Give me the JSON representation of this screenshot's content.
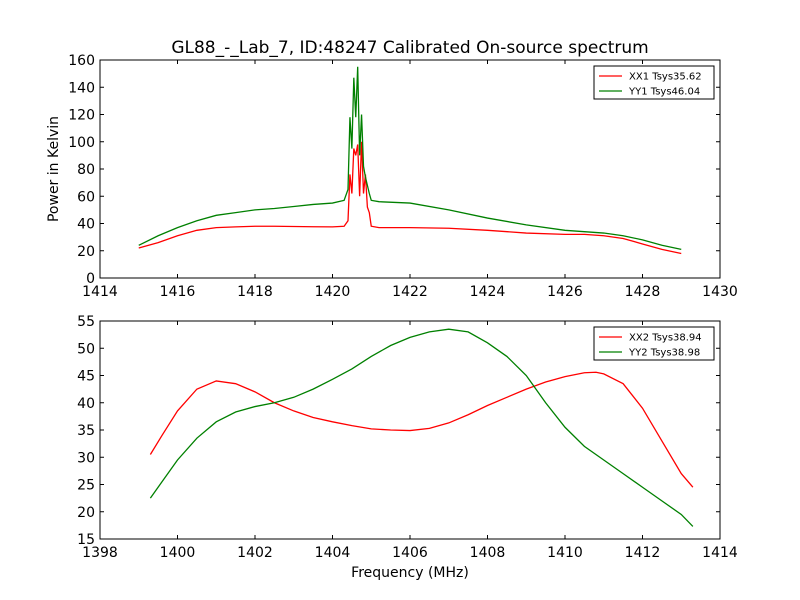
{
  "figure": {
    "title": "GL88_-_Lab_7, ID:48247 Calibrated On-source spectrum"
  },
  "chart_data": [
    {
      "type": "line",
      "title": "GL88_-_Lab_7, ID:48247 Calibrated On-source spectrum",
      "xlabel": "",
      "ylabel": "Power in Kelvin",
      "xlim": [
        1414,
        1430
      ],
      "ylim": [
        0,
        160
      ],
      "xticks": [
        1414,
        1416,
        1418,
        1420,
        1422,
        1424,
        1426,
        1428,
        1430
      ],
      "yticks": [
        0,
        20,
        40,
        60,
        80,
        100,
        120,
        140,
        160
      ],
      "grid": false,
      "legend_position": "top-right",
      "series": [
        {
          "name": "XX1 Tsys35.62",
          "color": "#ff0000",
          "x": [
            1415.0,
            1415.5,
            1416.0,
            1416.5,
            1417.0,
            1417.5,
            1418.0,
            1418.5,
            1419.0,
            1419.5,
            1420.0,
            1420.3,
            1420.4,
            1420.45,
            1420.5,
            1420.55,
            1420.6,
            1420.65,
            1420.7,
            1420.75,
            1420.8,
            1420.85,
            1420.9,
            1420.95,
            1421.0,
            1421.2,
            1422.0,
            1423.0,
            1424.0,
            1425.0,
            1426.0,
            1426.5,
            1427.0,
            1427.5,
            1428.0,
            1428.5,
            1429.0
          ],
          "y": [
            22,
            26,
            31,
            35,
            37,
            37.5,
            38,
            38,
            37.8,
            37.6,
            37.5,
            38,
            42,
            76,
            62,
            95,
            90,
            98,
            60,
            100,
            62,
            76,
            52,
            48,
            38,
            37,
            37,
            36.5,
            35,
            33,
            32,
            32,
            31,
            29,
            25,
            21,
            18
          ]
        },
        {
          "name": "YY1 Tsys46.04",
          "color": "#008000",
          "x": [
            1415.0,
            1415.5,
            1416.0,
            1416.5,
            1417.0,
            1417.5,
            1418.0,
            1418.5,
            1419.0,
            1419.5,
            1420.0,
            1420.3,
            1420.4,
            1420.45,
            1420.5,
            1420.55,
            1420.6,
            1420.65,
            1420.7,
            1420.75,
            1420.8,
            1420.85,
            1420.9,
            1420.95,
            1421.0,
            1421.2,
            1422.0,
            1423.0,
            1424.0,
            1425.0,
            1426.0,
            1426.5,
            1427.0,
            1427.5,
            1428.0,
            1428.5,
            1429.0
          ],
          "y": [
            24,
            31,
            37,
            42,
            46,
            48,
            50,
            51,
            52.5,
            54,
            55,
            57,
            65,
            118,
            95,
            147,
            118,
            155,
            90,
            120,
            82,
            74,
            68,
            62,
            57,
            56,
            55,
            50,
            44,
            39,
            35,
            34,
            33,
            31,
            28,
            24,
            21
          ]
        }
      ]
    },
    {
      "type": "line",
      "title": "",
      "xlabel": "Frequency (MHz)",
      "ylabel": "",
      "xlim": [
        1398,
        1414
      ],
      "ylim": [
        15,
        55
      ],
      "xticks": [
        1398,
        1400,
        1402,
        1404,
        1406,
        1408,
        1410,
        1412,
        1414
      ],
      "yticks": [
        15,
        20,
        25,
        30,
        35,
        40,
        45,
        50,
        55
      ],
      "grid": false,
      "legend_position": "top-right",
      "series": [
        {
          "name": "XX2 Tsys38.94",
          "color": "#ff0000",
          "x": [
            1399.3,
            1399.6,
            1400.0,
            1400.5,
            1401.0,
            1401.5,
            1402.0,
            1402.5,
            1403.0,
            1403.5,
            1404.0,
            1404.5,
            1405.0,
            1405.5,
            1406.0,
            1406.5,
            1407.0,
            1407.5,
            1408.0,
            1408.5,
            1409.0,
            1409.5,
            1410.0,
            1410.5,
            1410.8,
            1411.0,
            1411.5,
            1412.0,
            1412.5,
            1413.0,
            1413.3
          ],
          "y": [
            30.5,
            34,
            38.5,
            42.5,
            44,
            43.5,
            42,
            40,
            38.5,
            37.3,
            36.5,
            35.8,
            35.2,
            35,
            34.9,
            35.3,
            36.3,
            37.8,
            39.5,
            41,
            42.5,
            43.8,
            44.8,
            45.5,
            45.6,
            45.3,
            43.5,
            39,
            33,
            27,
            24.5
          ]
        },
        {
          "name": "YY2 Tsys38.98",
          "color": "#008000",
          "x": [
            1399.3,
            1399.6,
            1400.0,
            1400.5,
            1401.0,
            1401.5,
            1402.0,
            1402.5,
            1403.0,
            1403.5,
            1404.0,
            1404.5,
            1405.0,
            1405.5,
            1406.0,
            1406.5,
            1407.0,
            1407.5,
            1408.0,
            1408.5,
            1409.0,
            1409.5,
            1410.0,
            1410.5,
            1411.0,
            1411.5,
            1412.0,
            1412.5,
            1413.0,
            1413.3
          ],
          "y": [
            22.5,
            25.5,
            29.5,
            33.5,
            36.5,
            38.3,
            39.3,
            40,
            41,
            42.5,
            44.3,
            46.2,
            48.5,
            50.5,
            52,
            53,
            53.5,
            53,
            51,
            48.5,
            45,
            40,
            35.5,
            32,
            29.5,
            27,
            24.5,
            22,
            19.5,
            17.3
          ]
        }
      ]
    }
  ]
}
